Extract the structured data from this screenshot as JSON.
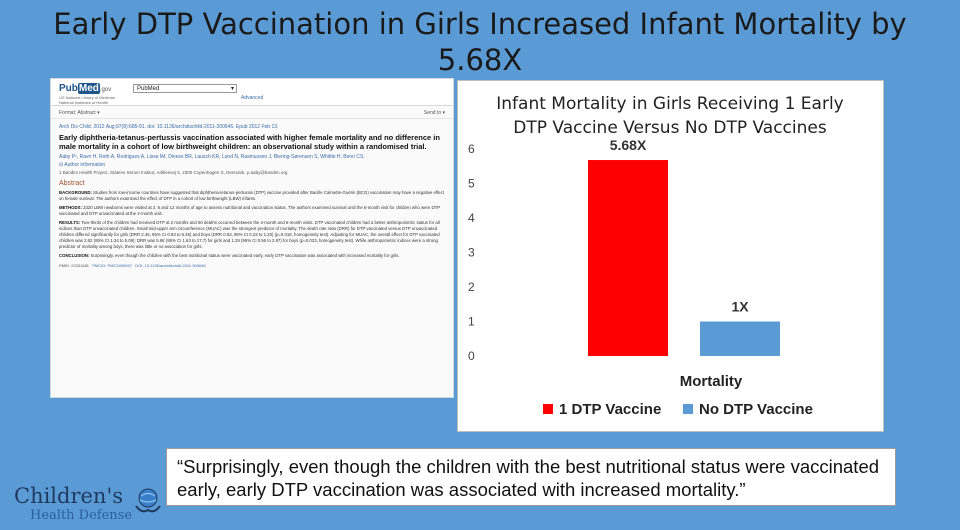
{
  "title_line1": "Early DTP Vaccination in Girls Increased Infant Mortality by",
  "title_line2": "5.68X",
  "article": {
    "logo_pub": "Pub",
    "logo_med": "Med",
    "logo_gov": ".gov",
    "logo_sub": "US National Library of Medicine National Institutes of Health",
    "db_select": "PubMed",
    "advanced": "Advanced",
    "format": "Format: Abstract ▾",
    "send_to": "Send to ▾",
    "citation": "Arch Dis Child. 2012 Aug;97(8):685-91. doi: 10.1136/archdischild-2011-300646. Epub 2012 Feb 13.",
    "title": "Early diphtheria-tetanus-pertussis vaccination associated with higher female mortality and no difference in male mortality in a cohort of low birthweight children: an observational study within a randomised trial.",
    "authors": "Aaby P¹, Ravn H, Roth A, Rodrigues A, Lisse IM, Diness BR, Lausch KR, Lund N, Rasmussen J, Biering-Sørensen S, Whittle H, Benn CS.",
    "author_info": "⊟ Author information",
    "affiliation": "1  Bandim Health Project, Statens Serum Institut, Artillerivej 5, 2300 Copenhagen S, Denmark. p.aaby@bandim.org",
    "abstract_heading": "Abstract",
    "background_label": "BACKGROUND:",
    "background": "Studies from low-income countries have suggested that diphtheria-tetanus-pertussis (DTP) vaccine provided after Bacille Calmette-Guérin (BCG) vaccination may have a negative effect on female survival. The authors examined the effect of DTP in a cohort of low birthweight (LBW) infants.",
    "methods_label": "METHODS:",
    "methods": "2320 LBW newborns were visited at 2, 6 and 12 months of age to assess nutritional and vaccination status. The authors examined survival until the 6-month visit for children who were DTP vaccinated and DTP unvaccinated at the 2-month visit.",
    "results_label": "RESULTS:",
    "results": "Two-thirds of the children had received DTP at 2 months and 50 deaths occurred between the 2-month and 6-month visits. DTP vaccinated children had a better anthropometric status for all indices than DTP unvaccinated children. Small mid-upper arm circumference (MUAC) was the strongest predictor of mortality. The death rate ratio (DRR) for DTP vaccinated versus DTP unvaccinated children differed significantly for girls (DRR 2.45, 95% CI 0.93 to 6.45) and boys (DRR 0.53, 95% CI 0.23 to 1.20) (p=0.018, homogeneity test). Adjusting for MUAC, the overall effect for DTP vaccinated children was 2.62 (95% CI 1.34 to 5.09); DRR was 5.68 (95% CI 1.63 to 17.7) for girls and 1.29 (95% CI 0.56 to 2.97) for boys (p=0.023, homogeneity test). While anthropometric indices were a strong predictor of mortality among boys, there was little or no association for girls.",
    "conclusion_label": "CONCLUSION:",
    "conclusion": "Surprisingly, even though the children with the best nutritional status were vaccinated early, early DTP vaccination was associated with increased mortality for girls.",
    "pmid": "PMID: 22331681",
    "pmcid": "PMCID: PMC3400557",
    "doi": "DOI: 10.1136/archdischild-2011-300646"
  },
  "chart_data": {
    "type": "bar",
    "title": "Infant Mortality in Girls Receiving 1 Early DTP Vaccine Versus No DTP Vaccines",
    "title_line1": "Infant Mortality in Girls Receiving 1 Early",
    "title_line2": "DTP Vaccine Versus No DTP Vaccines",
    "categories": [
      "Mortality"
    ],
    "xlabel": "Mortality",
    "ylabel": "",
    "ylim": [
      0,
      6
    ],
    "yticks": [
      0,
      1,
      2,
      3,
      4,
      5,
      6
    ],
    "grid": false,
    "legend_position": "bottom",
    "series": [
      {
        "name": "1 DTP Vaccine",
        "values": [
          5.68
        ],
        "label": "5.68X",
        "color": "#ff0000"
      },
      {
        "name": "No DTP Vaccine",
        "values": [
          1
        ],
        "label": "1X",
        "color": "#5b9bd5"
      }
    ]
  },
  "quote": "“Surprisingly, even though the children with the best nutritional status were vaccinated early, early DTP vaccination was associated with increased mortality.”",
  "logo": {
    "line1": "Children's",
    "line2": "Health Defense"
  },
  "colors": {
    "background": "#5b9bd5",
    "bar_red": "#ff0000",
    "bar_blue": "#5b9bd5"
  }
}
